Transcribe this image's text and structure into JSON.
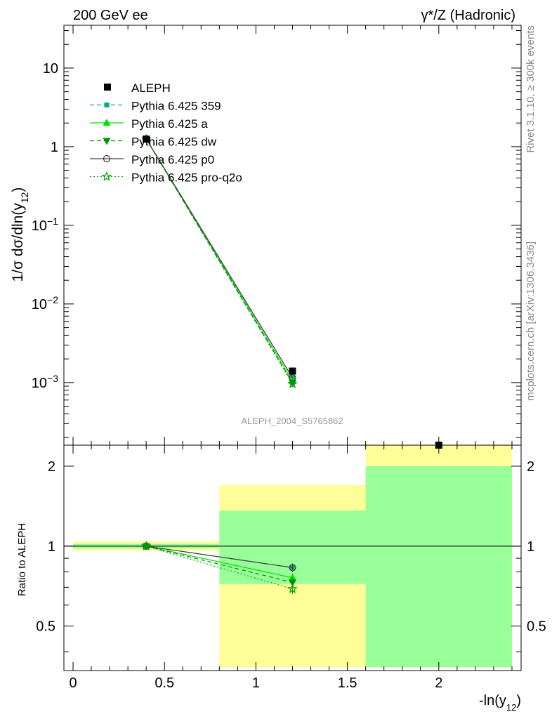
{
  "header": {
    "left": "200 GeV ee",
    "right": "γ*/Z (Hadronic)"
  },
  "side": {
    "rivet": "Rivet 3.1.10, ≥ 300k events",
    "mcplots": "mcplots.cern.ch [arXiv:1306.3436]"
  },
  "watermark": "ALEPH_2004_S5765862",
  "colors": {
    "data": "#000000",
    "p359": "#00b080",
    "pa": "#00e000",
    "pdw": "#009000",
    "pp0": "#404040",
    "pq2o": "#00a000",
    "band_inner": "#99ff99",
    "band_outer": "#ffff99"
  },
  "chart_data": [
    {
      "type": "line",
      "panel": "main",
      "ylabel": "1/σ  dσ/dln(y12)",
      "yscale": "log",
      "ylim": [
        0.00016,
        35
      ],
      "xlim": [
        -0.05,
        2.45
      ],
      "yticks": [
        {
          "value": 10,
          "label": "10"
        },
        {
          "value": 1,
          "label": "1"
        },
        {
          "value": 0.1,
          "label": "10−1"
        },
        {
          "value": 0.01,
          "label": "10−2"
        },
        {
          "value": 0.001,
          "label": "10−3"
        }
      ],
      "legend_position": "top-left",
      "data": {
        "name": "ALEPH",
        "x": [
          0.4,
          1.2,
          2.0
        ],
        "y": [
          1.25,
          0.0014,
          0.00014
        ]
      },
      "series": [
        {
          "name": "Pythia 6.425 359",
          "style": "dashed",
          "marker": "square-small",
          "color_key": "p359",
          "x": [
            0.4,
            1.2
          ],
          "y": [
            1.26,
            0.00115
          ]
        },
        {
          "name": "Pythia 6.425 a",
          "style": "solid",
          "marker": "triangle-up",
          "color_key": "pa",
          "x": [
            0.4,
            1.2
          ],
          "y": [
            1.26,
            0.00105
          ]
        },
        {
          "name": "Pythia 6.425 dw",
          "style": "dashed",
          "marker": "triangle-down",
          "color_key": "pdw",
          "x": [
            0.4,
            1.2
          ],
          "y": [
            1.25,
            0.00099
          ]
        },
        {
          "name": "Pythia 6.425 p0",
          "style": "solid",
          "marker": "circle-open",
          "color_key": "pp0",
          "x": [
            0.4,
            1.2
          ],
          "y": [
            1.26,
            0.00115
          ]
        },
        {
          "name": "Pythia 6.425 pro-q2o",
          "style": "dotted",
          "marker": "star-open",
          "color_key": "pq2o",
          "x": [
            0.4,
            1.2
          ],
          "y": [
            1.25,
            0.00096
          ]
        }
      ]
    },
    {
      "type": "line",
      "panel": "ratio",
      "ylabel": "Ratio to ALEPH",
      "xlabel": "-ln(y12)",
      "yscale": "log",
      "ylim": [
        0.34,
        2.4
      ],
      "xlim": [
        -0.05,
        2.45
      ],
      "yticks": [
        {
          "value": 0.5,
          "label": "0.5"
        },
        {
          "value": 1,
          "label": "1"
        },
        {
          "value": 2,
          "label": "2"
        }
      ],
      "xticks": [
        {
          "value": 0,
          "label": "0"
        },
        {
          "value": 0.5,
          "label": "0.5"
        },
        {
          "value": 1,
          "label": "1"
        },
        {
          "value": 1.5,
          "label": "1.5"
        },
        {
          "value": 2,
          "label": "2"
        }
      ],
      "bands": [
        {
          "x0": 0.0,
          "x1": 0.8,
          "outer": [
            0.96,
            1.04
          ],
          "inner": [
            0.98,
            1.02
          ]
        },
        {
          "x0": 0.8,
          "x1": 1.6,
          "outer": [
            0.35,
            1.7
          ],
          "inner": [
            0.72,
            1.36
          ]
        },
        {
          "x0": 1.6,
          "x1": 2.4,
          "outer": [
            0.35,
            2.4
          ],
          "inner": [
            0.35,
            2.0
          ]
        }
      ],
      "series": [
        {
          "name": "Pythia 6.425 359",
          "x": [
            0.4,
            1.2
          ],
          "y": [
            1.0,
            0.83
          ],
          "err": [
            0.01,
            0.03
          ]
        },
        {
          "name": "Pythia 6.425 a",
          "x": [
            0.4,
            1.2
          ],
          "y": [
            1.0,
            0.76
          ],
          "err": [
            0.01,
            0.03
          ]
        },
        {
          "name": "Pythia 6.425 dw",
          "x": [
            0.4,
            1.2
          ],
          "y": [
            1.0,
            0.73
          ],
          "err": [
            0.01,
            0.03
          ]
        },
        {
          "name": "Pythia 6.425 p0",
          "x": [
            0.4,
            1.2
          ],
          "y": [
            1.0,
            0.83
          ],
          "err": [
            0.01,
            0.03
          ]
        },
        {
          "name": "Pythia 6.425 pro-q2o",
          "x": [
            0.4,
            1.2
          ],
          "y": [
            1.0,
            0.69
          ],
          "err": [
            0.01,
            0.03
          ]
        }
      ]
    }
  ]
}
